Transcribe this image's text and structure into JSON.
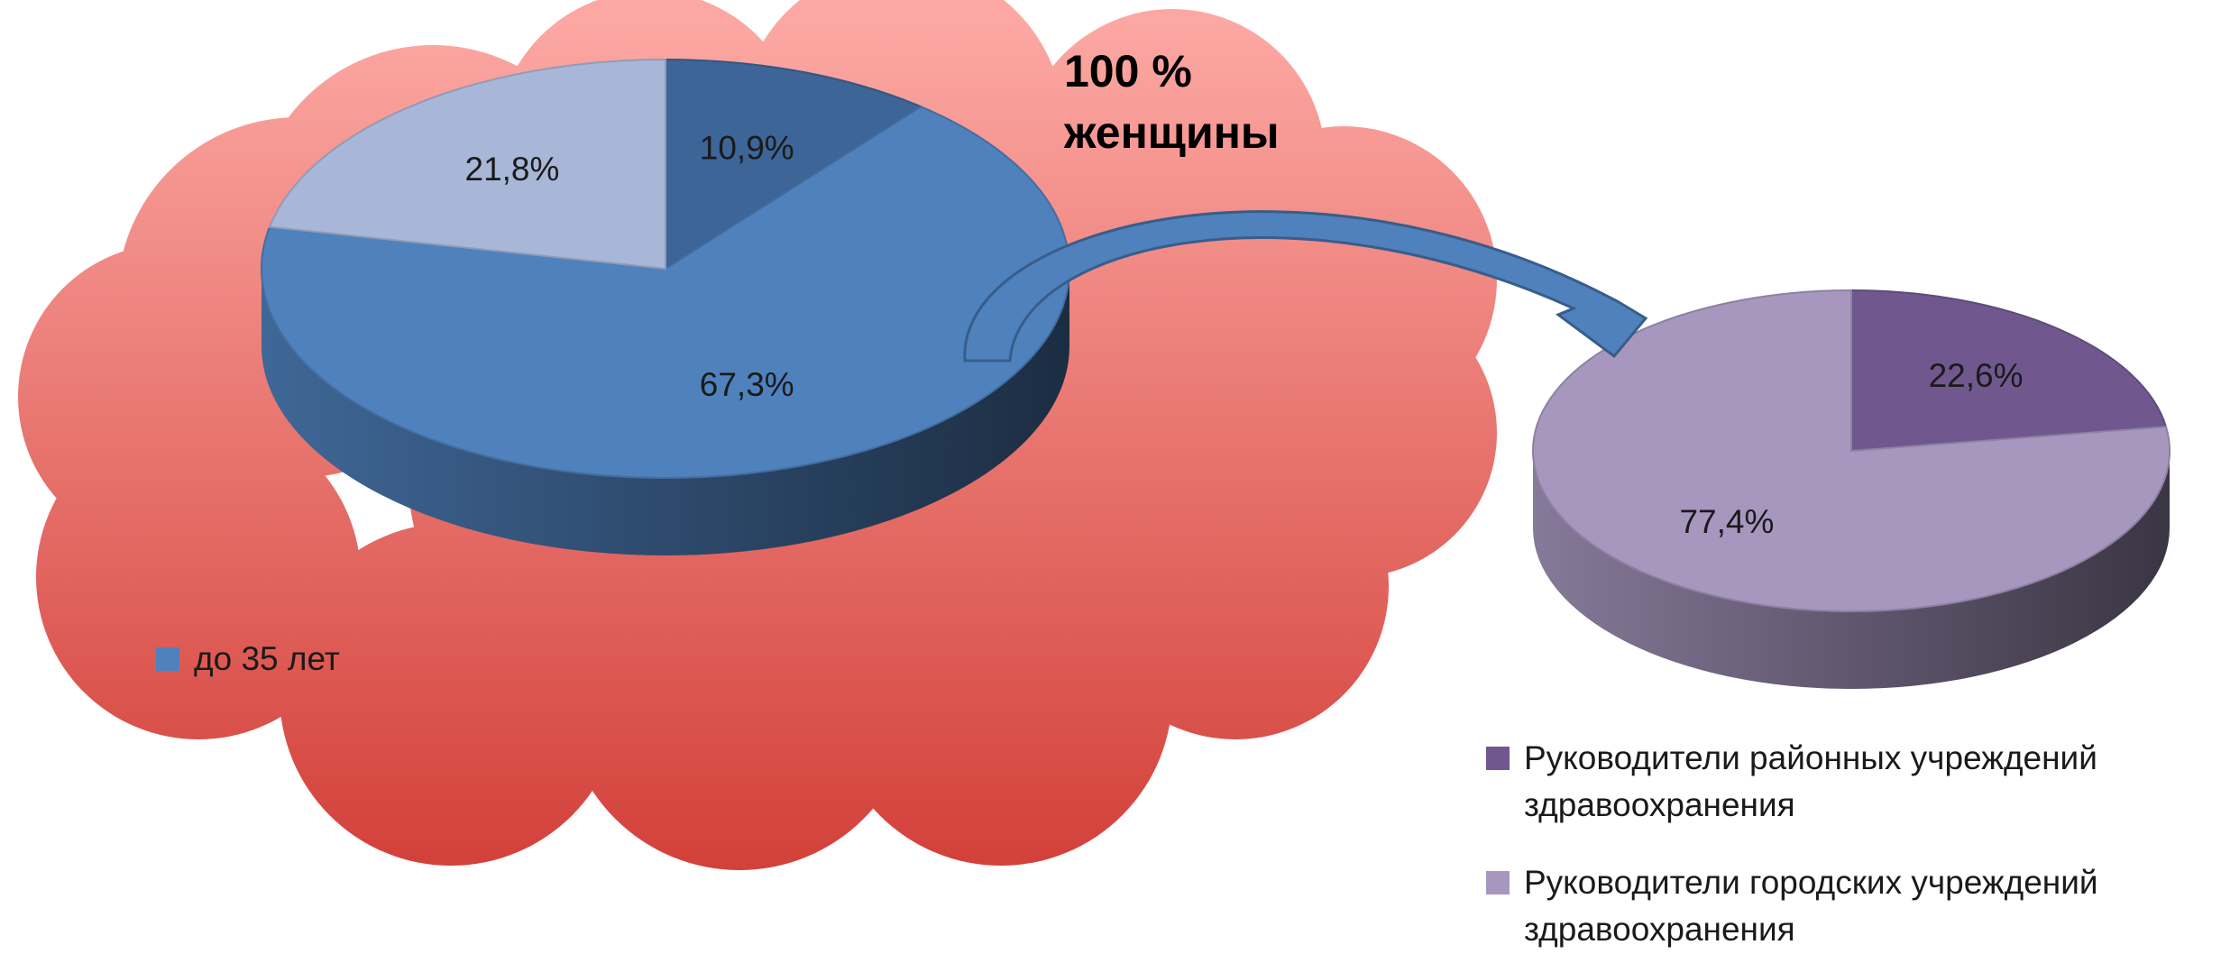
{
  "chart_data": [
    {
      "type": "pie",
      "annotation": "100 % женщины",
      "categories": [
        null,
        "до 35 лет",
        null
      ],
      "values": [
        10.9,
        67.3,
        21.8
      ],
      "value_labels": [
        "10,9%",
        "67,3%",
        "21,8%"
      ],
      "colors": [
        "#3d6597",
        "#4f81bd",
        "#a8b7d8"
      ]
    },
    {
      "type": "pie",
      "categories": [
        "Руководители районных учреждений здравоохранения",
        "Руководители городских учреждений здравоохранения"
      ],
      "values": [
        22.6,
        77.4
      ],
      "value_labels": [
        "22,6%",
        "77,4%"
      ],
      "colors": [
        "#70588f",
        "#a797bf"
      ]
    }
  ]
}
